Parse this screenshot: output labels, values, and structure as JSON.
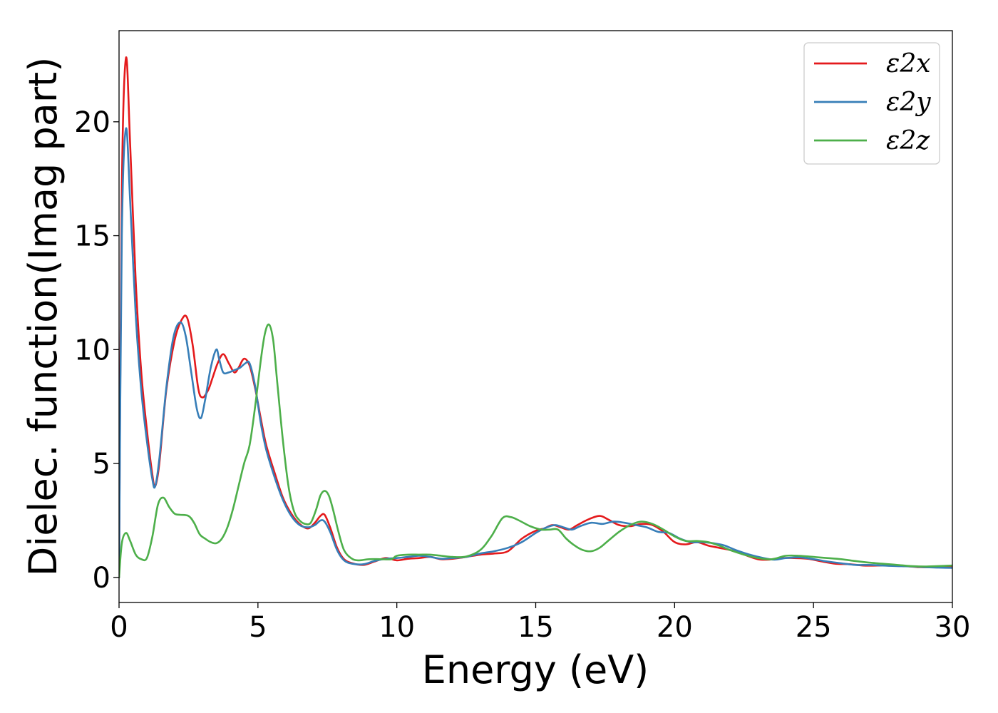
{
  "chart_data": {
    "type": "line",
    "title": "",
    "xlabel": "Energy (eV)",
    "ylabel": "Dielec. function(Imag part)",
    "xlim": [
      0,
      30
    ],
    "ylim": [
      -1.1,
      24
    ],
    "xticks": [
      0,
      5,
      10,
      15,
      20,
      25,
      30
    ],
    "yticks": [
      0,
      5,
      10,
      15,
      20
    ],
    "grid": false,
    "legend_position": "top-right",
    "series": [
      {
        "name": "ε2x",
        "color": "#e41a1c",
        "x": [
          0,
          0.1,
          0.25,
          0.4,
          0.6,
          0.8,
          1.0,
          1.2,
          1.3,
          1.45,
          1.7,
          2.0,
          2.25,
          2.45,
          2.65,
          2.85,
          3.0,
          3.2,
          3.35,
          3.55,
          3.75,
          3.95,
          4.15,
          4.3,
          4.5,
          4.7,
          4.9,
          5.1,
          5.3,
          5.6,
          5.9,
          6.2,
          6.5,
          6.8,
          7.05,
          7.25,
          7.4,
          7.6,
          7.85,
          8.1,
          8.4,
          8.8,
          9.2,
          9.6,
          10.0,
          10.4,
          10.8,
          11.2,
          11.6,
          12.0,
          12.5,
          13.0,
          13.5,
          14.0,
          14.5,
          15.0,
          15.3,
          15.6,
          15.9,
          16.2,
          16.5,
          16.9,
          17.3,
          17.6,
          18.0,
          18.4,
          18.8,
          19.2,
          19.6,
          20.0,
          20.4,
          20.8,
          21.2,
          21.6,
          22.0,
          22.5,
          23.0,
          23.4,
          23.8,
          24.3,
          24.8,
          25.3,
          25.8,
          26.3,
          26.8,
          27.3,
          27.8,
          28.3,
          28.8,
          29.3,
          29.7,
          30.0
        ],
        "y": [
          0.0,
          17.0,
          22.8,
          19.0,
          13.0,
          9.0,
          6.5,
          4.5,
          4.0,
          5.0,
          8.2,
          10.4,
          11.3,
          11.4,
          10.2,
          8.3,
          7.9,
          8.2,
          8.7,
          9.4,
          9.8,
          9.4,
          9.0,
          9.2,
          9.6,
          9.3,
          8.3,
          7.0,
          5.8,
          4.6,
          3.5,
          2.8,
          2.35,
          2.15,
          2.4,
          2.7,
          2.75,
          2.2,
          1.3,
          0.8,
          0.62,
          0.55,
          0.7,
          0.85,
          0.75,
          0.82,
          0.85,
          0.9,
          0.8,
          0.82,
          0.9,
          1.0,
          1.05,
          1.15,
          1.7,
          2.05,
          2.15,
          2.3,
          2.2,
          2.1,
          2.3,
          2.55,
          2.7,
          2.55,
          2.3,
          2.25,
          2.35,
          2.3,
          2.0,
          1.55,
          1.45,
          1.55,
          1.4,
          1.3,
          1.2,
          1.0,
          0.8,
          0.78,
          0.85,
          0.85,
          0.82,
          0.7,
          0.6,
          0.58,
          0.52,
          0.52,
          0.52,
          0.5,
          0.45,
          0.45,
          0.45,
          0.48
        ]
      },
      {
        "name": "ε2y",
        "color": "#377eb8",
        "x": [
          0,
          0.1,
          0.25,
          0.4,
          0.6,
          0.8,
          1.0,
          1.2,
          1.3,
          1.45,
          1.7,
          1.95,
          2.2,
          2.4,
          2.6,
          2.8,
          2.95,
          3.1,
          3.3,
          3.5,
          3.6,
          3.75,
          3.95,
          4.15,
          4.35,
          4.55,
          4.7,
          4.9,
          5.1,
          5.3,
          5.6,
          5.9,
          6.2,
          6.5,
          6.8,
          7.05,
          7.25,
          7.4,
          7.6,
          7.85,
          8.1,
          8.4,
          8.8,
          9.2,
          9.6,
          10.0,
          10.4,
          10.8,
          11.2,
          11.6,
          12.0,
          12.5,
          13.0,
          13.5,
          14.0,
          14.5,
          15.0,
          15.4,
          15.7,
          16.0,
          16.3,
          16.6,
          17.0,
          17.4,
          17.8,
          18.2,
          18.6,
          19.0,
          19.4,
          19.8,
          20.2,
          20.6,
          21.0,
          21.4,
          21.8,
          22.2,
          22.7,
          23.2,
          23.6,
          24.0,
          24.5,
          25.0,
          25.5,
          26.0,
          26.5,
          27.0,
          27.5,
          28.0,
          28.5,
          29.0,
          29.5,
          30.0
        ],
        "y": [
          0.0,
          15.0,
          19.7,
          16.5,
          11.5,
          8.2,
          6.0,
          4.3,
          4.0,
          5.2,
          8.3,
          10.5,
          11.2,
          10.6,
          9.0,
          7.4,
          7.0,
          7.8,
          9.2,
          10.0,
          9.6,
          9.0,
          9.0,
          9.1,
          9.2,
          9.4,
          9.4,
          8.4,
          6.8,
          5.6,
          4.4,
          3.4,
          2.7,
          2.3,
          2.2,
          2.3,
          2.5,
          2.45,
          2.0,
          1.2,
          0.75,
          0.6,
          0.58,
          0.72,
          0.82,
          0.85,
          0.9,
          0.95,
          0.9,
          0.82,
          0.85,
          0.9,
          1.05,
          1.15,
          1.3,
          1.55,
          1.95,
          2.2,
          2.3,
          2.2,
          2.1,
          2.25,
          2.4,
          2.35,
          2.45,
          2.4,
          2.3,
          2.2,
          2.0,
          1.95,
          1.7,
          1.55,
          1.55,
          1.5,
          1.4,
          1.2,
          1.0,
          0.85,
          0.78,
          0.85,
          0.88,
          0.8,
          0.7,
          0.62,
          0.55,
          0.55,
          0.52,
          0.5,
          0.48,
          0.45,
          0.43,
          0.42
        ]
      },
      {
        "name": "ε2z",
        "color": "#4daf4a",
        "x": [
          0,
          0.1,
          0.25,
          0.4,
          0.6,
          0.8,
          1.0,
          1.2,
          1.4,
          1.6,
          1.8,
          2.0,
          2.2,
          2.5,
          2.7,
          2.9,
          3.1,
          3.3,
          3.5,
          3.7,
          3.9,
          4.1,
          4.3,
          4.5,
          4.7,
          4.9,
          5.1,
          5.25,
          5.4,
          5.55,
          5.7,
          5.9,
          6.1,
          6.3,
          6.5,
          6.7,
          6.9,
          7.1,
          7.25,
          7.4,
          7.55,
          7.7,
          7.9,
          8.1,
          8.35,
          8.6,
          9.0,
          9.4,
          9.8,
          10.0,
          10.4,
          10.8,
          11.2,
          11.6,
          12.0,
          12.5,
          13.0,
          13.4,
          13.8,
          14.1,
          14.4,
          14.8,
          15.2,
          15.5,
          15.8,
          16.1,
          16.4,
          16.7,
          17.0,
          17.3,
          17.6,
          18.0,
          18.4,
          18.8,
          19.2,
          19.6,
          20.0,
          20.4,
          20.8,
          21.2,
          21.6,
          22.0,
          22.5,
          23.0,
          23.5,
          24.0,
          24.5,
          25.0,
          25.5,
          26.0,
          26.5,
          27.0,
          27.5,
          28.0,
          28.5,
          29.0,
          29.5,
          30.0
        ],
        "y": [
          0.0,
          1.5,
          1.95,
          1.6,
          1.0,
          0.8,
          0.85,
          1.8,
          3.2,
          3.5,
          3.1,
          2.8,
          2.75,
          2.7,
          2.4,
          1.9,
          1.7,
          1.55,
          1.5,
          1.7,
          2.2,
          3.0,
          4.0,
          5.0,
          5.8,
          7.5,
          9.5,
          10.7,
          11.1,
          10.4,
          8.5,
          6.0,
          4.0,
          2.9,
          2.5,
          2.35,
          2.4,
          3.0,
          3.6,
          3.8,
          3.6,
          3.0,
          2.0,
          1.2,
          0.85,
          0.75,
          0.8,
          0.8,
          0.8,
          0.95,
          1.0,
          1.0,
          1.0,
          0.95,
          0.9,
          0.92,
          1.2,
          1.8,
          2.6,
          2.65,
          2.5,
          2.25,
          2.1,
          2.1,
          2.1,
          1.7,
          1.4,
          1.2,
          1.15,
          1.3,
          1.6,
          2.0,
          2.3,
          2.45,
          2.35,
          2.1,
          1.8,
          1.6,
          1.6,
          1.55,
          1.4,
          1.2,
          1.0,
          0.85,
          0.8,
          0.95,
          0.95,
          0.9,
          0.85,
          0.8,
          0.72,
          0.65,
          0.6,
          0.55,
          0.5,
          0.48,
          0.5,
          0.52
        ]
      }
    ]
  }
}
